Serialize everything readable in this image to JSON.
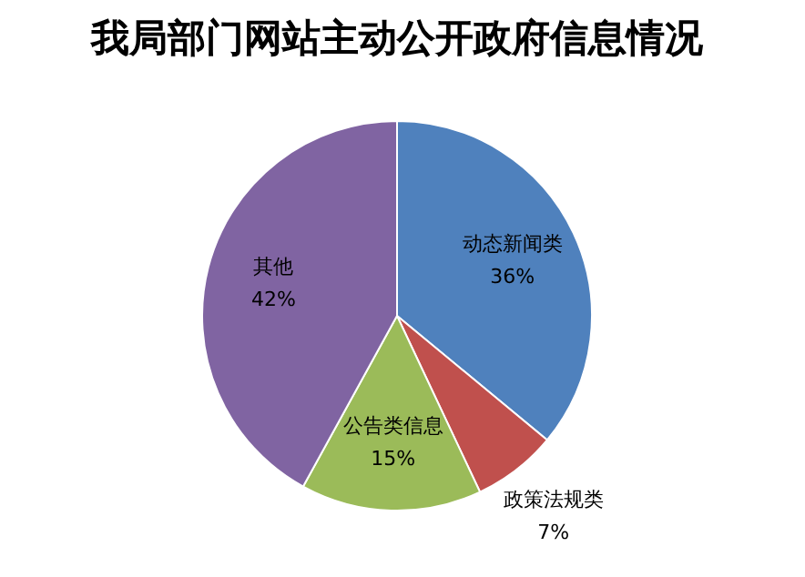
{
  "chart_data": {
    "type": "pie",
    "title": "我局部门网站主动公开政府信息情况",
    "categories": [
      "动态新闻类",
      "政策法规类",
      "公告类信息",
      "其他"
    ],
    "values": [
      36,
      7,
      15,
      42
    ],
    "colors": [
      "#4f81bd",
      "#c0504d",
      "#9bbb59",
      "#8064a2"
    ],
    "value_labels": [
      "36%",
      "7%",
      "15%",
      "42%"
    ]
  }
}
